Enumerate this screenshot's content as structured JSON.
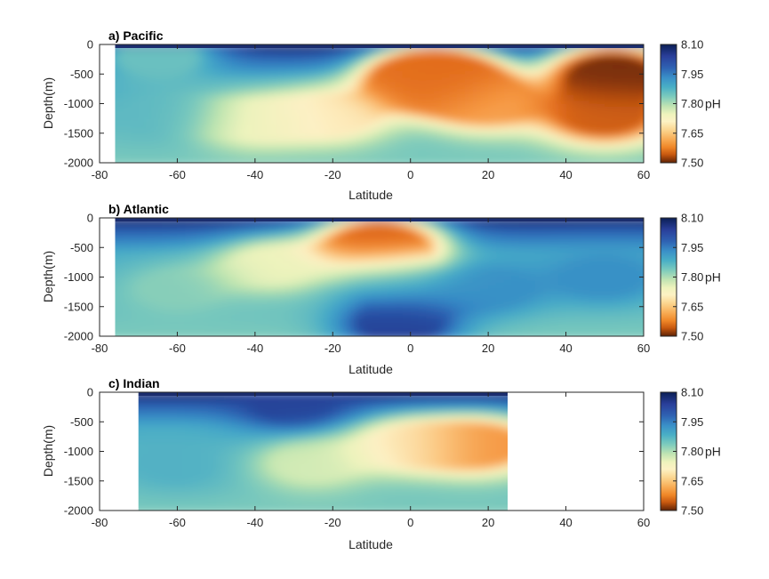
{
  "chart_data": [
    {
      "type": "heatmap",
      "title": "a) Pacific",
      "xlabel": "Latitude",
      "ylabel": "Depth(m)",
      "xlim": [
        -80,
        60
      ],
      "ylim": [
        -2000,
        0
      ],
      "x_ticks": [
        "-80",
        "-60",
        "-40",
        "-20",
        "0",
        "20",
        "40",
        "60"
      ],
      "y_ticks": [
        "0",
        "-500",
        "-1000",
        "-1500",
        "-2000"
      ],
      "data_extent_lat": [
        -76,
        60
      ],
      "colorbar": {
        "label": "pH",
        "ticks": [
          "8.10",
          "7.95",
          "7.80",
          "7.65",
          "7.50"
        ],
        "range": [
          7.5,
          8.1
        ]
      },
      "features": [
        {
          "lat": -65,
          "depth": -200,
          "ph": 7.92
        },
        {
          "lat": -62,
          "depth": -1200,
          "ph": 7.93
        },
        {
          "lat": -40,
          "depth": -1300,
          "ph": 7.82
        },
        {
          "lat": -20,
          "depth": -1200,
          "ph": 7.78
        },
        {
          "lat": 5,
          "depth": -600,
          "ph": 7.66
        },
        {
          "lat": 7,
          "depth": -600,
          "ph": 7.58
        },
        {
          "lat": 20,
          "depth": -1000,
          "ph": 7.7
        },
        {
          "lat": 52,
          "depth": -500,
          "ph": 7.52
        },
        {
          "lat": 50,
          "depth": -1200,
          "ph": 7.6
        }
      ]
    },
    {
      "type": "heatmap",
      "title": "b) Atlantic",
      "xlabel": "Latitude",
      "ylabel": "Depth(m)",
      "xlim": [
        -80,
        60
      ],
      "ylim": [
        -2000,
        0
      ],
      "x_ticks": [
        "-80",
        "-60",
        "-40",
        "-20",
        "0",
        "20",
        "40",
        "60"
      ],
      "y_ticks": [
        "0",
        "-500",
        "-1000",
        "-1500",
        "-2000"
      ],
      "data_extent_lat": [
        -76,
        60
      ],
      "colorbar": {
        "label": "pH",
        "ticks": [
          "8.10",
          "7.95",
          "7.80",
          "7.65",
          "7.50"
        ],
        "range": [
          7.5,
          8.1
        ]
      },
      "features": [
        {
          "lat": -60,
          "depth": -1200,
          "ph": 7.9
        },
        {
          "lat": -35,
          "depth": -800,
          "ph": 7.83
        },
        {
          "lat": -8,
          "depth": -450,
          "ph": 7.6
        },
        {
          "lat": -5,
          "depth": -1000,
          "ph": 7.95
        },
        {
          "lat": -3,
          "depth": -1800,
          "ph": 8.06
        },
        {
          "lat": 20,
          "depth": -1200,
          "ph": 7.98
        },
        {
          "lat": 50,
          "depth": -1000,
          "ph": 7.98
        }
      ]
    },
    {
      "type": "heatmap",
      "title": "c) Indian",
      "xlabel": "Latitude",
      "ylabel": "Depth(m)",
      "xlim": [
        -80,
        60
      ],
      "ylim": [
        -2000,
        0
      ],
      "x_ticks": [
        "-80",
        "-60",
        "-40",
        "-20",
        "0",
        "20",
        "40",
        "60"
      ],
      "y_ticks": [
        "0",
        "-500",
        "-1000",
        "-1500",
        "-2000"
      ],
      "data_extent_lat": [
        -70,
        25
      ],
      "colorbar": {
        "label": "pH",
        "ticks": [
          "8.10",
          "7.95",
          "7.80",
          "7.65",
          "7.50"
        ],
        "range": [
          7.5,
          8.1
        ]
      },
      "features": [
        {
          "lat": -60,
          "depth": -1200,
          "ph": 7.94
        },
        {
          "lat": -30,
          "depth": -200,
          "ph": 8.06
        },
        {
          "lat": -25,
          "depth": -1200,
          "ph": 7.85
        },
        {
          "lat": 0,
          "depth": -900,
          "ph": 7.78
        },
        {
          "lat": 18,
          "depth": -900,
          "ph": 7.68
        }
      ]
    }
  ]
}
